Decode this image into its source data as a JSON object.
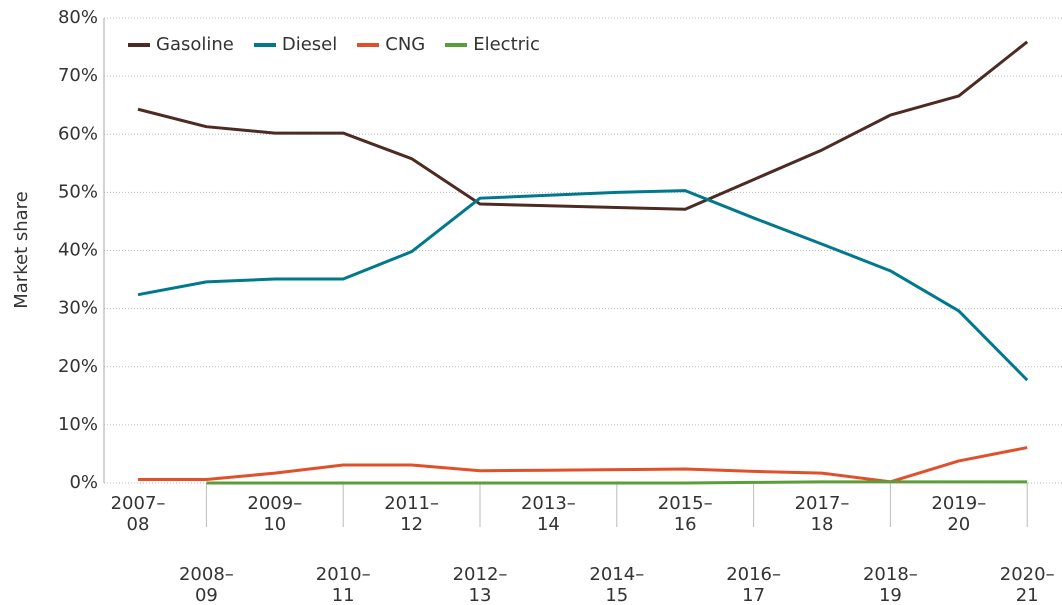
{
  "chart_data": {
    "type": "line",
    "y_label": "Market share",
    "categories": [
      "2007–08",
      "2008–09",
      "2009–10",
      "2010–11",
      "2011–12",
      "2012–13",
      "2013–14",
      "2014–15",
      "2015–16",
      "2016–17",
      "2017–18",
      "2018–19",
      "2019–20",
      "2020–21"
    ],
    "series": [
      {
        "name": "Gasoline",
        "color": "#4d2b23",
        "values": [
          64.3,
          61.3,
          60.2,
          60.2,
          55.8,
          48.0,
          47.7,
          47.4,
          47.1,
          52.2,
          57.3,
          63.3,
          66.6,
          75.9
        ]
      },
      {
        "name": "Diesel",
        "color": "#00798c",
        "values": [
          32.4,
          34.6,
          35.1,
          35.1,
          39.8,
          49.0,
          49.5,
          50.0,
          50.3,
          45.6,
          41.1,
          36.5,
          29.6,
          17.7
        ]
      },
      {
        "name": "CNG",
        "color": "#e0502b",
        "values": [
          0.6,
          0.6,
          1.7,
          3.1,
          3.1,
          2.1,
          2.2,
          2.3,
          2.4,
          2.0,
          1.7,
          0.2,
          3.8,
          6.1
        ]
      },
      {
        "name": "Electric",
        "color": "#5a9e3a",
        "values": [
          null,
          0,
          0,
          0,
          0,
          0,
          0,
          0,
          0,
          0.1,
          0.2,
          0.2,
          0.2,
          0.2
        ]
      }
    ],
    "ylim": [
      0,
      80
    ],
    "yticks": [
      {
        "value": 0,
        "label": "0%"
      },
      {
        "value": 10,
        "label": "10%"
      },
      {
        "value": 20,
        "label": "20%"
      },
      {
        "value": 30,
        "label": "30%"
      },
      {
        "value": 40,
        "label": "40%"
      },
      {
        "value": 50,
        "label": "50%"
      },
      {
        "value": 60,
        "label": "60%"
      },
      {
        "value": 70,
        "label": "70%"
      },
      {
        "value": 80,
        "label": "80%"
      }
    ],
    "grid": true,
    "legend": "top-left"
  }
}
